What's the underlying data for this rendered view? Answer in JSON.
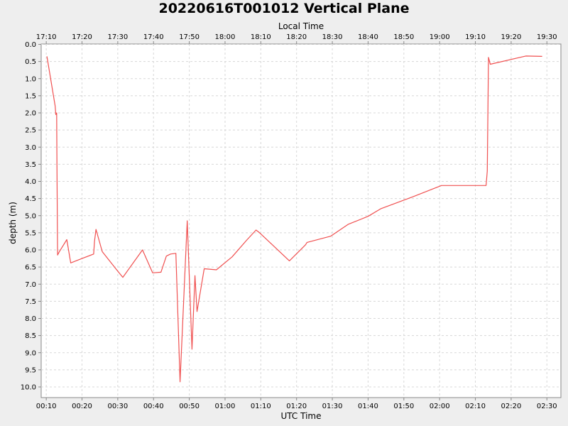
{
  "chart_data": {
    "type": "line",
    "title": "20220616T001012 Vertical Plane",
    "xlabel": "UTC Time",
    "x2label": "Local Time",
    "ylabel": "depth (m)",
    "y_inverted": true,
    "ylim": [
      0.0,
      10.3
    ],
    "yticks": [
      "0.0",
      "0.5",
      "1.0",
      "1.5",
      "2.0",
      "2.5",
      "3.0",
      "3.5",
      "4.0",
      "4.5",
      "5.0",
      "5.5",
      "6.0",
      "6.5",
      "7.0",
      "7.5",
      "8.0",
      "8.5",
      "9.0",
      "9.5",
      "10.0"
    ],
    "xticks": [
      "00:10",
      "00:20",
      "00:30",
      "00:40",
      "00:50",
      "01:00",
      "01:10",
      "01:20",
      "01:30",
      "01:40",
      "01:50",
      "02:00",
      "02:10",
      "02:20",
      "02:30"
    ],
    "x2ticks": [
      "17:10",
      "17:20",
      "17:30",
      "17:40",
      "17:50",
      "18:00",
      "18:10",
      "18:20",
      "18:30",
      "18:40",
      "18:50",
      "19:00",
      "19:10",
      "19:20",
      "19:30"
    ],
    "grid": true,
    "line_color": "#f05050",
    "series": [
      {
        "x": [
          "00:10:12",
          "00:12:30",
          "00:12:40",
          "00:12:55",
          "00:13:00",
          "00:13:10",
          "00:13:40",
          "00:15:45",
          "00:16:50",
          "00:20:00",
          "00:23:15",
          "00:23:30",
          "00:23:55",
          "00:25:40",
          "00:29:50",
          "00:31:25",
          "00:36:55",
          "00:39:45",
          "00:42:05",
          "00:43:35",
          "00:44:45",
          "00:46:15",
          "00:47:25",
          "00:49:25",
          "00:50:45",
          "00:51:35",
          "00:52:10",
          "00:54:10",
          "00:57:35",
          "01:02:00",
          "01:06:00",
          "01:08:40",
          "01:09:40",
          "01:18:00",
          "01:22:30",
          "01:22:55",
          "01:29:30",
          "01:34:30",
          "01:40:00",
          "01:43:30",
          "01:52:30",
          "02:00:30",
          "02:13:00",
          "02:13:20",
          "02:13:40",
          "02:14:10",
          "02:24:05",
          "02:28:40"
        ],
        "y": [
          0.35,
          1.8,
          2.05,
          2.0,
          3.5,
          6.15,
          6.05,
          5.7,
          6.38,
          6.25,
          6.12,
          5.75,
          5.4,
          6.05,
          6.6,
          6.8,
          6.0,
          6.67,
          6.65,
          6.18,
          6.12,
          6.1,
          9.85,
          5.15,
          8.9,
          6.75,
          7.8,
          6.55,
          6.58,
          6.2,
          5.72,
          5.42,
          5.5,
          6.32,
          5.85,
          5.78,
          5.6,
          5.25,
          5.02,
          4.8,
          4.45,
          4.12,
          4.12,
          3.7,
          0.38,
          0.58,
          0.34,
          0.35
        ]
      }
    ]
  }
}
